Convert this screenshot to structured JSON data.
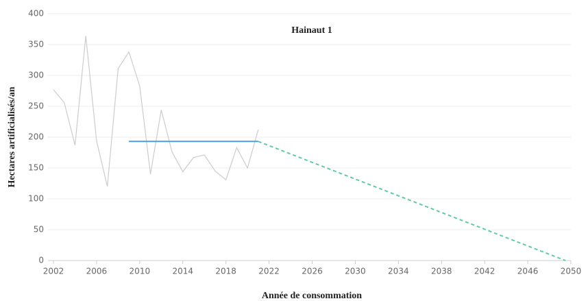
{
  "chart_data": {
    "type": "line",
    "title": "Hainaut 1",
    "xlabel": "Année de consommation",
    "ylabel": "Hectares artificialisés/an",
    "xlim": [
      2002,
      2050
    ],
    "xticks": [
      2002,
      2006,
      2010,
      2014,
      2018,
      2022,
      2026,
      2030,
      2034,
      2038,
      2042,
      2046,
      2050
    ],
    "ylim": [
      0,
      400
    ],
    "yticks": [
      0,
      50,
      100,
      150,
      200,
      250,
      300,
      350,
      400
    ],
    "grid": true,
    "series": [
      {
        "color": "#cccccc",
        "dash": false,
        "x": [
          2002,
          2003,
          2004,
          2005,
          2006,
          2007,
          2008,
          2009,
          2010,
          2011,
          2012,
          2013,
          2014,
          2015,
          2016,
          2017,
          2018,
          2019,
          2020,
          2021
        ],
        "values": [
          277,
          256,
          187,
          364,
          194,
          120,
          311,
          338,
          283,
          140,
          244,
          176,
          144,
          167,
          171,
          145,
          131,
          183,
          150,
          212
        ]
      },
      {
        "color": "#4a9fd8",
        "dash": false,
        "x": [
          2009,
          2021
        ],
        "values": [
          193,
          193
        ]
      },
      {
        "color": "#5fc9a8",
        "dash": true,
        "x": [
          2021,
          2049.5
        ],
        "values": [
          193,
          0
        ]
      }
    ]
  }
}
